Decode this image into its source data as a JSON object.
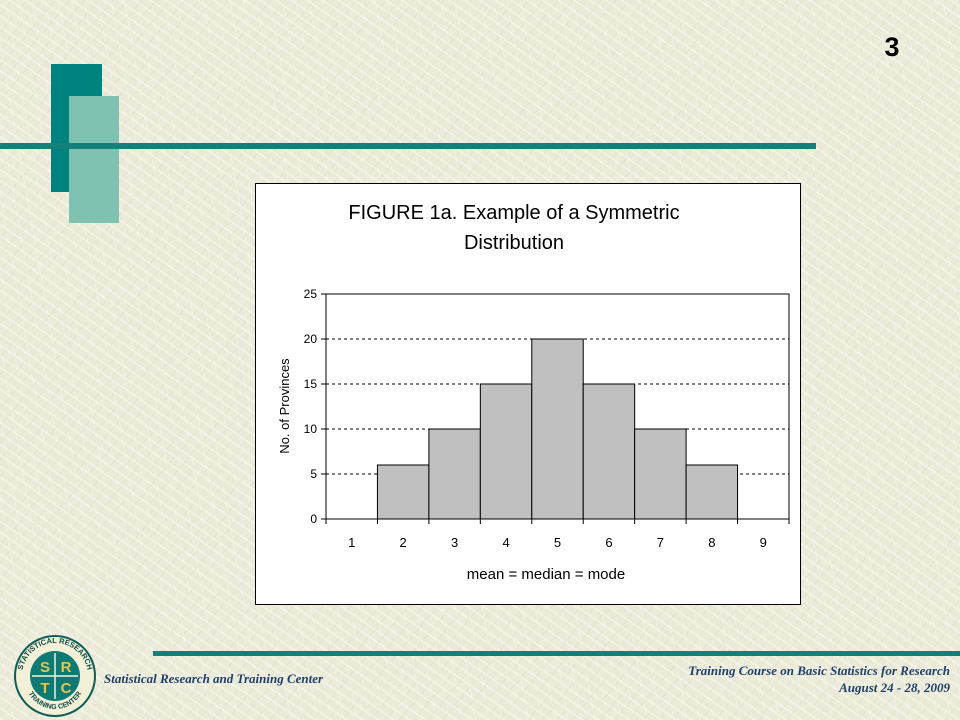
{
  "slide": {
    "number": "3"
  },
  "footer": {
    "organization": "Statistical Research and Training Center",
    "course": "Training Course on Basic Statistics for Research",
    "dates": "August  24 - 28, 2009"
  },
  "logo": {
    "ring_text_top": "STATISTICAL RESEARCH",
    "ring_text_bottom": "TRAINING CENTER",
    "letters": [
      "S",
      "R",
      "T",
      "C"
    ]
  },
  "colors": {
    "accent_dark": "#00827f",
    "accent_light": "#7fc2b2",
    "bar_fill": "#c0c0c0",
    "footer_text": "#1f3f6b"
  },
  "chart_data": {
    "type": "bar",
    "title_lines": [
      "FIGURE 1a.  Example of a Symmetric",
      "Distribution"
    ],
    "xlabel": "mean = median = mode",
    "ylabel": "No. of Provinces",
    "categories": [
      "1",
      "2",
      "3",
      "4",
      "5",
      "6",
      "7",
      "8",
      "9"
    ],
    "values": [
      0,
      6,
      10,
      15,
      20,
      15,
      10,
      6,
      0
    ],
    "ylim": [
      0,
      25
    ],
    "yticks": [
      0,
      5,
      10,
      15,
      20,
      25
    ],
    "grid": "horizontal dashed",
    "legend": "none"
  }
}
